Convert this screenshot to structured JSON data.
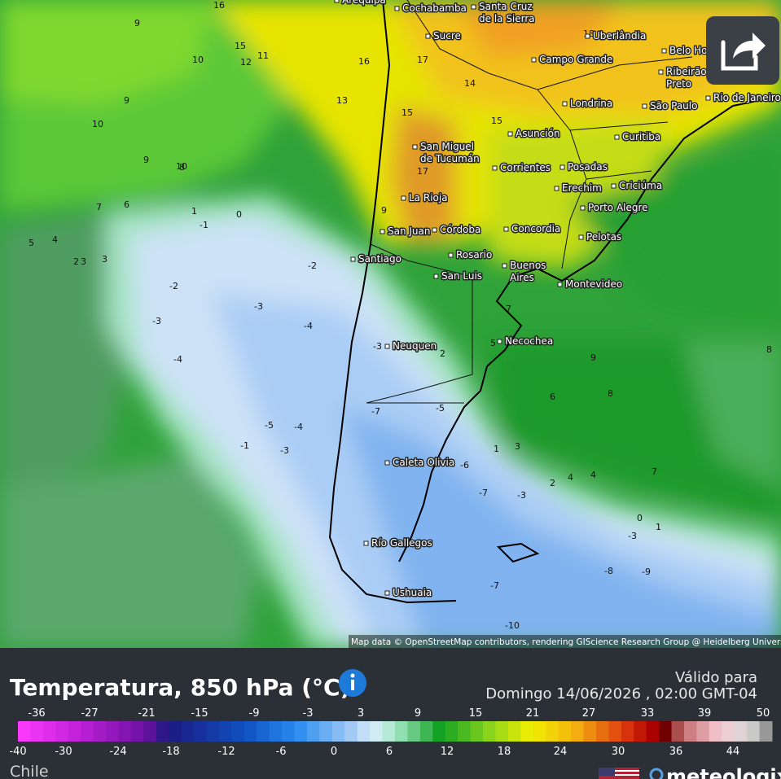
{
  "map": {
    "cities": [
      {
        "lines": [
          "Arequipa"
        ]
      },
      {
        "lines": [
          "Cochabamba"
        ]
      },
      {
        "lines": [
          "Santa Cruz",
          "de la Sierra"
        ]
      },
      {
        "lines": [
          "Sucre"
        ]
      },
      {
        "lines": [
          "Uberlândia"
        ]
      },
      {
        "lines": [
          "Belo Horizonte"
        ]
      },
      {
        "lines": [
          "Campo Grande"
        ]
      },
      {
        "lines": [
          "Ribeirão",
          "Preto"
        ]
      },
      {
        "lines": [
          "Londrina"
        ]
      },
      {
        "lines": [
          "São Paulo"
        ]
      },
      {
        "lines": [
          "Rio de Janeiro"
        ]
      },
      {
        "lines": [
          "Asunción"
        ]
      },
      {
        "lines": [
          "Curitiba"
        ]
      },
      {
        "lines": [
          "San Miguel",
          "de Tucumán"
        ]
      },
      {
        "lines": [
          "Corrientes"
        ]
      },
      {
        "lines": [
          "Posadas"
        ]
      },
      {
        "lines": [
          "Erechim"
        ]
      },
      {
        "lines": [
          "Criciúma"
        ]
      },
      {
        "lines": [
          "La Rioja"
        ]
      },
      {
        "lines": [
          "Porto Alegre"
        ]
      },
      {
        "lines": [
          "San Juan"
        ]
      },
      {
        "lines": [
          "Córdoba"
        ]
      },
      {
        "lines": [
          "Concordia"
        ]
      },
      {
        "lines": [
          "Pelotas"
        ]
      },
      {
        "lines": [
          "Rosario"
        ]
      },
      {
        "lines": [
          "Santiago"
        ]
      },
      {
        "lines": [
          "Buenos",
          "Aires"
        ]
      },
      {
        "lines": [
          "San Luis"
        ]
      },
      {
        "lines": [
          "Montevideo"
        ]
      },
      {
        "lines": [
          "Necochea"
        ]
      },
      {
        "lines": [
          "Neuquen"
        ]
      },
      {
        "lines": [
          "Caleta Olivia"
        ]
      },
      {
        "lines": [
          "Río Gallegos"
        ]
      },
      {
        "lines": [
          "Ushuaia"
        ]
      }
    ],
    "contour_labels": [
      16,
      9,
      10,
      11,
      12,
      15,
      10,
      9,
      10,
      8,
      9,
      13,
      16,
      15,
      17,
      18,
      17,
      14,
      15,
      9,
      6,
      7,
      5,
      4,
      2,
      3,
      1,
      0,
      -1,
      -2,
      -2,
      -3,
      -4,
      -3,
      -4,
      -5,
      -4,
      -3,
      -1,
      2,
      1,
      2,
      3,
      4,
      -3,
      -5,
      -7,
      -6,
      -7,
      -3,
      -8,
      -9,
      -7,
      -10,
      7,
      9,
      6,
      8,
      7,
      5,
      4,
      1,
      0,
      -3,
      8,
      3
    ],
    "attribution": "Map data © OpenStreetMap contributors, rendering GIScience Research Group @ Heidelberg University"
  },
  "panel": {
    "title": "Temperatura, 850 hPa (°C)",
    "valid_label": "Válido para",
    "valid_time": "Domingo 14/06/2026 , 02:00 GMT-04",
    "scale": {
      "top_labels": [
        -36,
        -27,
        -21,
        -15,
        -9,
        -3,
        3,
        9,
        15,
        21,
        27,
        33,
        39,
        50
      ],
      "bottom_labels": [
        -40,
        -30,
        -24,
        -18,
        -12,
        -6,
        0,
        6,
        12,
        18,
        24,
        30,
        36,
        44
      ]
    },
    "region": "Chile",
    "brand": "meteologix"
  }
}
